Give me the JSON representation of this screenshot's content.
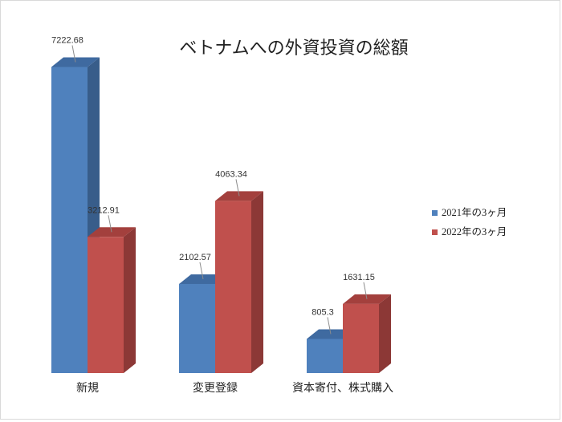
{
  "chart_data": {
    "type": "bar",
    "title": "ベトナムへの外資投資の総額",
    "xlabel": "",
    "ylabel": "",
    "ylim": [
      0,
      7800
    ],
    "grid": false,
    "legend_position": "right",
    "categories": [
      "新規",
      "変更登録",
      "資本寄付、株式購入"
    ],
    "series": [
      {
        "name": "2021年の3ヶ月",
        "values": [
          7222.68,
          2102.57,
          805.3
        ],
        "value_labels": [
          "7222.68",
          "2102.57",
          "805.3"
        ],
        "color": "#4f81bd",
        "side_color": "#385d8a",
        "top_color": "#3f6aa0"
      },
      {
        "name": "2022年の3ヶ月",
        "values": [
          3212.91,
          4063.34,
          1631.15
        ],
        "value_labels": [
          "3212.91",
          "4063.34",
          "1631.15"
        ],
        "color": "#c0504d",
        "side_color": "#8c3836",
        "top_color": "#a3403d"
      }
    ]
  }
}
